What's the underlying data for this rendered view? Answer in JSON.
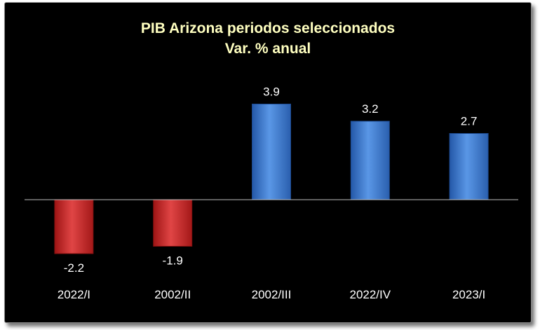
{
  "chart_data": {
    "type": "bar",
    "title": "PIB Arizona periodos seleccionados",
    "subtitle": "Var. % anual",
    "categories": [
      "2022/I",
      "2002/II",
      "2002/III",
      "2022/IV",
      "2023/I"
    ],
    "values": [
      -2.2,
      -1.9,
      3.9,
      3.2,
      2.7
    ],
    "value_labels": [
      "-2.2",
      "-1.9",
      "3.9",
      "3.2",
      "2.7"
    ],
    "ylim": [
      -2.5,
      4.5
    ],
    "grid": false,
    "legend": "none",
    "xlabel": "",
    "ylabel": ""
  },
  "colors": {
    "background": "#000000",
    "title": "#ffffc0",
    "negative": "#d42a2a",
    "positive": "#3b78d0",
    "axis": "#bfbfbf"
  }
}
